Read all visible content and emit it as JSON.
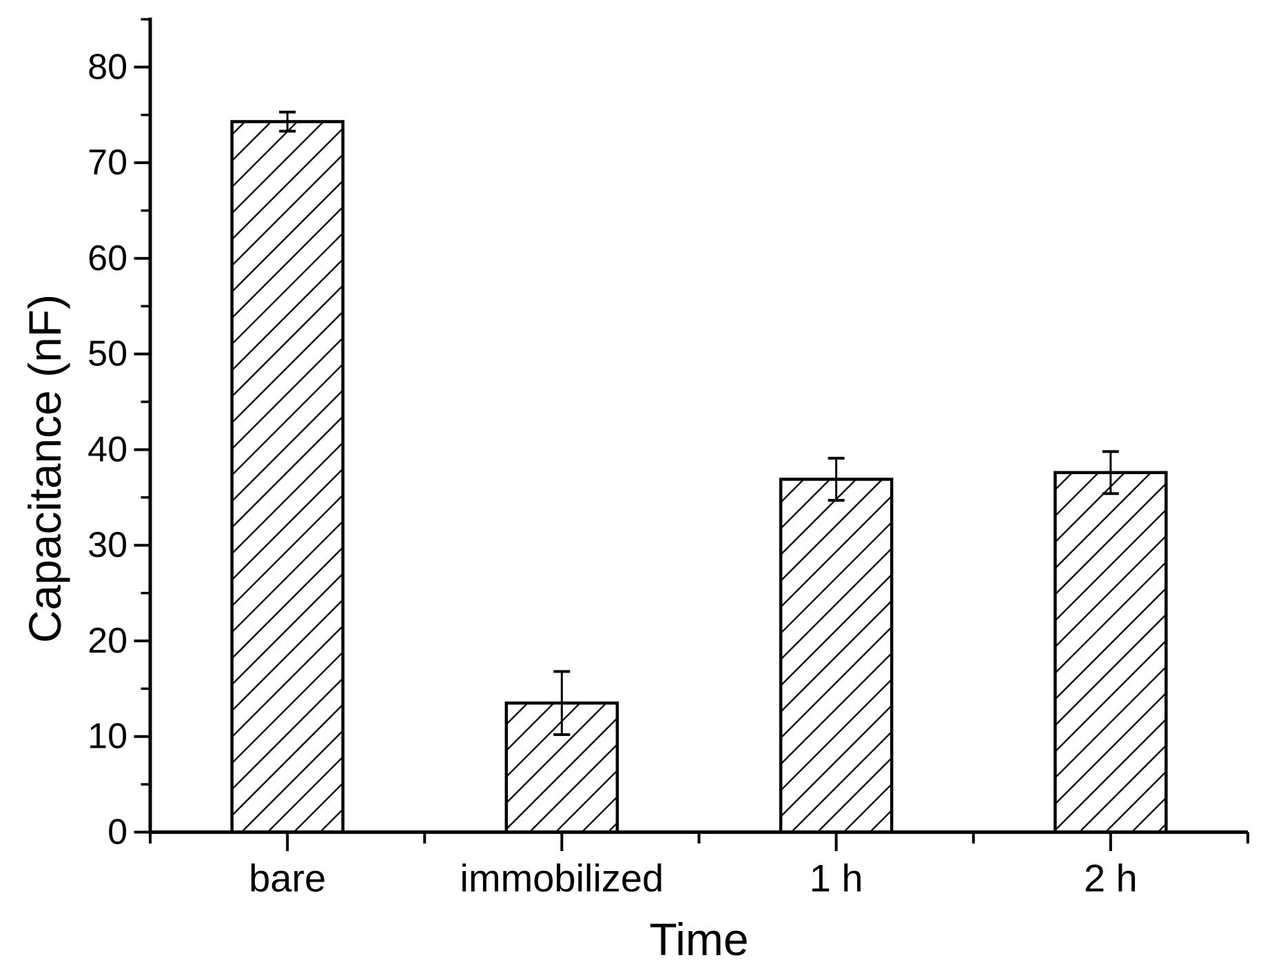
{
  "figure": {
    "background_color": "#ffffff",
    "foreground_color": "#000000"
  },
  "chart_data": {
    "type": "bar",
    "title": "",
    "xlabel": "Time",
    "ylabel": "Capacitance (nF)",
    "categories": [
      "bare",
      "immobilized",
      "1 h",
      "2 h"
    ],
    "values": [
      74.3,
      13.5,
      36.9,
      37.6
    ],
    "errors": [
      1.0,
      3.3,
      2.2,
      2.2
    ],
    "ylim": [
      0,
      85
    ],
    "y_major_step": 10,
    "y_minor_step": 5,
    "y_tick_labels": [
      "0",
      "10",
      "20",
      "30",
      "40",
      "50",
      "60",
      "70",
      "80"
    ],
    "grid": false,
    "legend": null,
    "bar_fill": "#ffffff",
    "bar_edge": "#000000",
    "hatch_style": "forward-diagonal",
    "hatch_color": "#141414",
    "error_bar_color": "#000000",
    "axis_color": "#000000",
    "tick_direction": "out"
  }
}
